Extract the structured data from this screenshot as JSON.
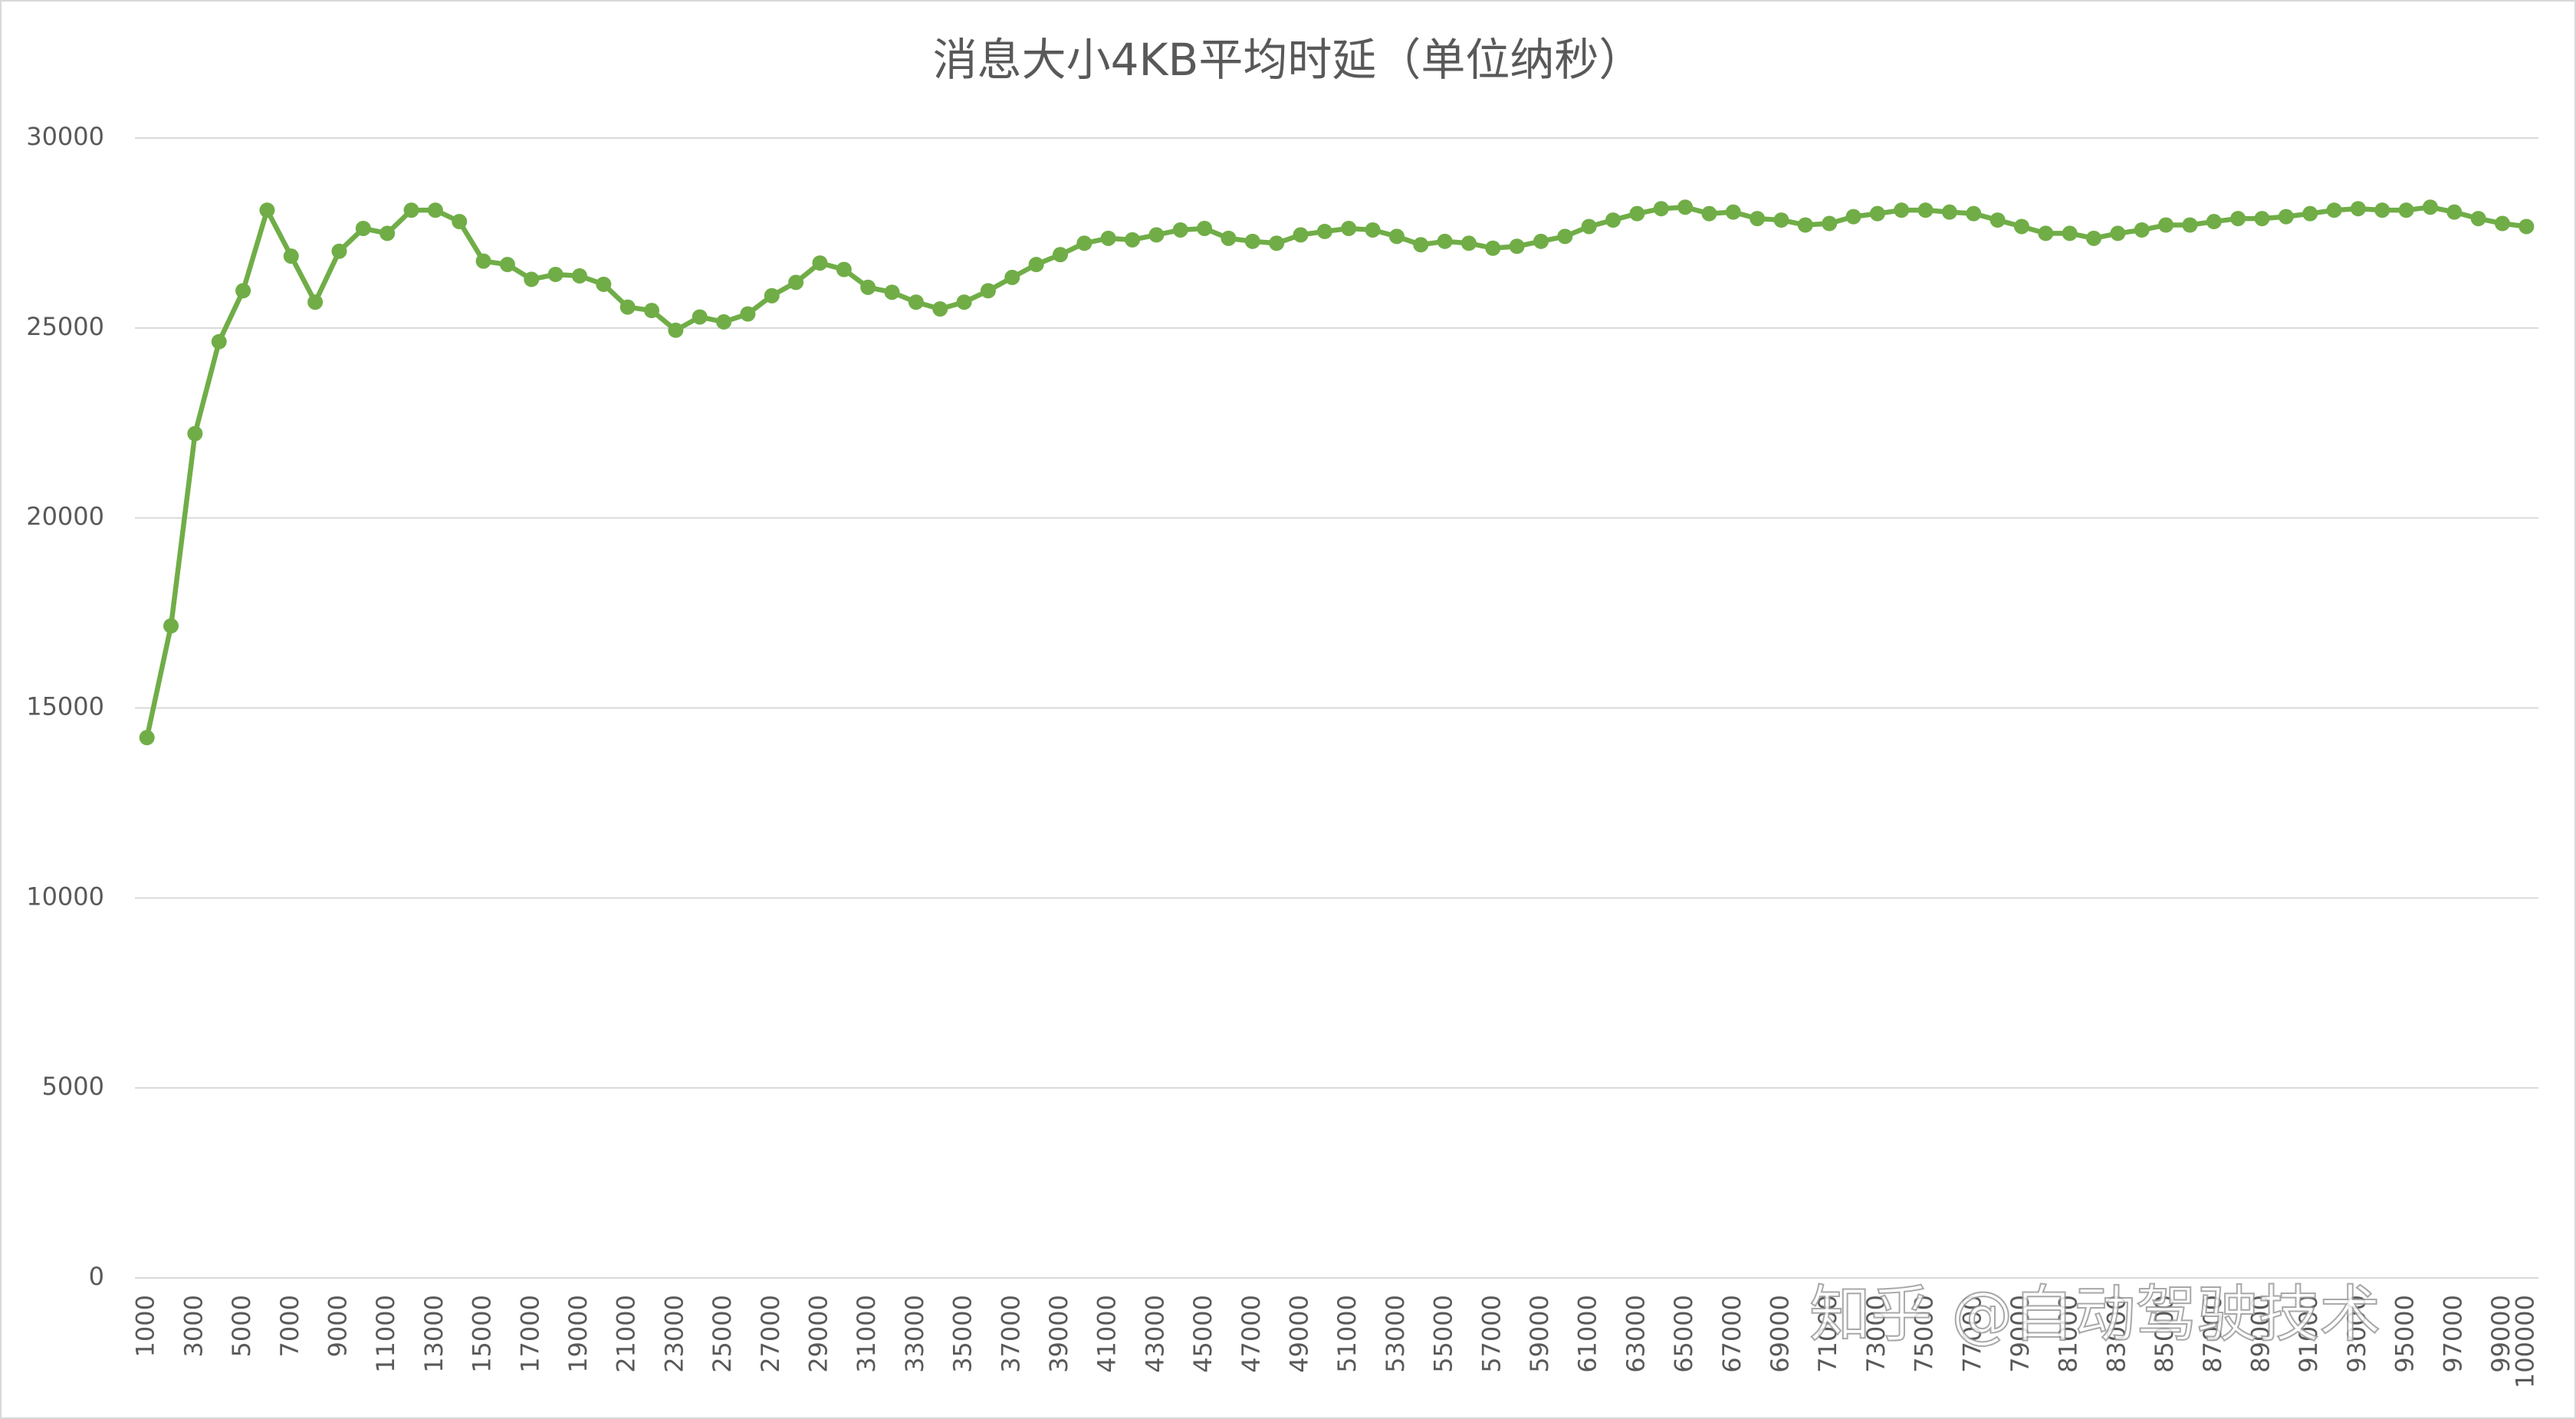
{
  "chart_data": {
    "type": "line",
    "title": "消息大小4KB平均时延（单位纳秒）",
    "categories": [
      1000,
      null,
      3000,
      null,
      5000,
      null,
      7000,
      null,
      9000,
      null,
      11000,
      null,
      13000,
      null,
      15000,
      null,
      17000,
      null,
      19000,
      null,
      21000,
      null,
      23000,
      null,
      25000,
      null,
      27000,
      null,
      29000,
      null,
      31000,
      null,
      33000,
      null,
      35000,
      null,
      37000,
      null,
      39000,
      null,
      41000,
      null,
      43000,
      null,
      45000,
      null,
      47000,
      null,
      49000,
      null,
      51000,
      null,
      53000,
      null,
      55000,
      null,
      57000,
      null,
      59000,
      null,
      61000,
      null,
      63000,
      null,
      65000,
      null,
      67000,
      null,
      69000,
      null,
      71000,
      null,
      73000,
      null,
      75000,
      null,
      77000,
      null,
      79000,
      null,
      81000,
      null,
      83000,
      null,
      85000,
      null,
      87000,
      null,
      89000,
      null,
      91000,
      null,
      93000,
      null,
      95000,
      null,
      97000,
      null,
      99000,
      100000
    ],
    "series": [
      {
        "color": "#70ad47",
        "values": [
          14220,
          17160,
          22220,
          24640,
          25980,
          28100,
          26890,
          25680,
          27020,
          27620,
          27490,
          28100,
          28100,
          27800,
          26760,
          26670,
          26280,
          26410,
          26370,
          26150,
          25550,
          25460,
          24940,
          25290,
          25160,
          25370,
          25850,
          26200,
          26710,
          26540,
          26070,
          25940,
          25680,
          25500,
          25680,
          25980,
          26330,
          26670,
          26930,
          27230,
          27360,
          27320,
          27450,
          27580,
          27620,
          27360,
          27280,
          27230,
          27450,
          27540,
          27620,
          27580,
          27410,
          27190,
          27280,
          27230,
          27100,
          27150,
          27280,
          27410,
          27670,
          27840,
          28010,
          28140,
          28180,
          28010,
          28050,
          27880,
          27840,
          27710,
          27750,
          27930,
          28010,
          28100,
          28100,
          28050,
          28010,
          27840,
          27670,
          27490,
          27490,
          27360,
          27490,
          27580,
          27710,
          27710,
          27800,
          27880,
          27880,
          27930,
          28010,
          28100,
          28140,
          28100,
          28100,
          28180,
          28050,
          27880,
          27750,
          27670
        ]
      }
    ],
    "ylim": [
      0,
      30000
    ],
    "yticks": [
      0,
      5000,
      10000,
      15000,
      20000,
      25000,
      30000
    ],
    "grid": true,
    "watermark": "知乎 @自动驾驶技术"
  }
}
